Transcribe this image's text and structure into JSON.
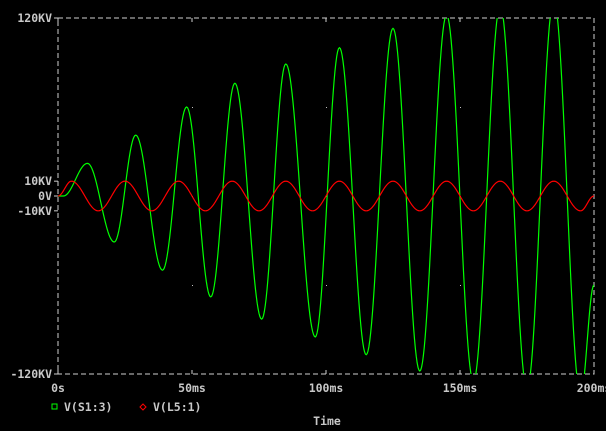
{
  "chart_data": {
    "type": "line",
    "title": "",
    "xlabel": "Time",
    "ylabel": "",
    "xlim": [
      0,
      200
    ],
    "x_unit": "ms",
    "ylim": [
      -120,
      120
    ],
    "y_unit": "KV",
    "grid": "dotted",
    "legend_placement": "bottom-left",
    "x_ticks": [
      {
        "value": 0,
        "label": "0s"
      },
      {
        "value": 50,
        "label": "50ms"
      },
      {
        "value": 100,
        "label": "100ms"
      },
      {
        "value": 150,
        "label": "150ms"
      },
      {
        "value": 200,
        "label": "200ms"
      }
    ],
    "y_ticks": [
      {
        "value": 120,
        "label": "120KV"
      },
      {
        "value": 10,
        "label": "10KV"
      },
      {
        "value": 0,
        "label": "0V"
      },
      {
        "value": -10,
        "label": "-10KV"
      },
      {
        "value": -120,
        "label": "-120KV"
      }
    ],
    "series": [
      {
        "name": "V(S1:3)",
        "color": "#00ff00",
        "marker": "square",
        "extrema_ms_kv": [
          [
            0,
            0
          ],
          [
            2,
            0
          ],
          [
            11,
            22
          ],
          [
            21,
            -31
          ],
          [
            29,
            41
          ],
          [
            39,
            -50
          ],
          [
            48,
            60
          ],
          [
            57,
            -68
          ],
          [
            66,
            76
          ],
          [
            76,
            -83
          ],
          [
            85,
            89
          ],
          [
            96,
            -95
          ],
          [
            105,
            100
          ],
          [
            115,
            -107
          ],
          [
            125,
            113
          ],
          [
            135,
            -118
          ],
          [
            145,
            122
          ],
          [
            155,
            -125
          ],
          [
            165,
            128
          ],
          [
            175,
            -130
          ],
          [
            185,
            132
          ],
          [
            195,
            -134
          ],
          [
            200,
            -60
          ]
        ]
      },
      {
        "name": "V(L5:1)",
        "color": "#ff0000",
        "marker": "diamond",
        "extrema_ms_kv": [
          [
            0,
            0
          ],
          [
            5,
            10
          ],
          [
            15,
            -10
          ],
          [
            25,
            10
          ],
          [
            35,
            -10
          ],
          [
            45,
            10
          ],
          [
            55,
            -10
          ],
          [
            65,
            10
          ],
          [
            75,
            -10
          ],
          [
            85,
            10
          ],
          [
            95,
            -10
          ],
          [
            105,
            10
          ],
          [
            115,
            -10
          ],
          [
            125,
            10
          ],
          [
            135,
            -10
          ],
          [
            145,
            10
          ],
          [
            155,
            -10
          ],
          [
            165,
            10
          ],
          [
            175,
            -10
          ],
          [
            185,
            10
          ],
          [
            195,
            -10
          ],
          [
            200,
            0
          ]
        ]
      }
    ]
  }
}
